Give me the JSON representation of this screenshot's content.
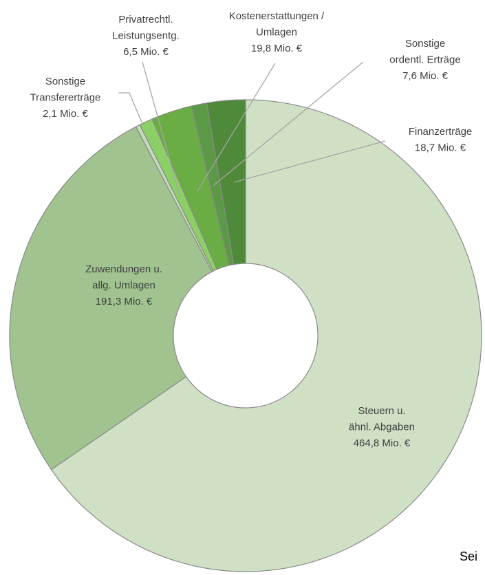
{
  "chart_data": {
    "type": "donut",
    "categories": [
      [
        "Steuern u.",
        "ähnl. Abgaben"
      ],
      [
        "Zuwendungen u.",
        "allg. Umlagen"
      ],
      [
        "Sonstige",
        "Transfererträge"
      ],
      [
        "Privatrechtl.",
        "Leistungsentg."
      ],
      [
        "Kostenerstattungen /",
        "Umlagen"
      ],
      [
        "Sonstige",
        "ordentl. Erträge"
      ],
      [
        "Finanzerträge"
      ]
    ],
    "values": [
      464.8,
      191.3,
      2.1,
      6.5,
      19.8,
      7.6,
      18.7
    ],
    "value_labels": [
      "464,8 Mio. €",
      "191,3 Mio. €",
      "2,1 Mio. €",
      "6,5 Mio. €",
      "19,8 Mio. €",
      "7,6 Mio. €",
      "18,7 Mio. €"
    ],
    "colors": [
      "#cfe0c5",
      "#a0c38f",
      "#c4dab8",
      "#8ccf66",
      "#6aad45",
      "#5c9946",
      "#4f8a3b"
    ],
    "footer_text": "Sei"
  }
}
